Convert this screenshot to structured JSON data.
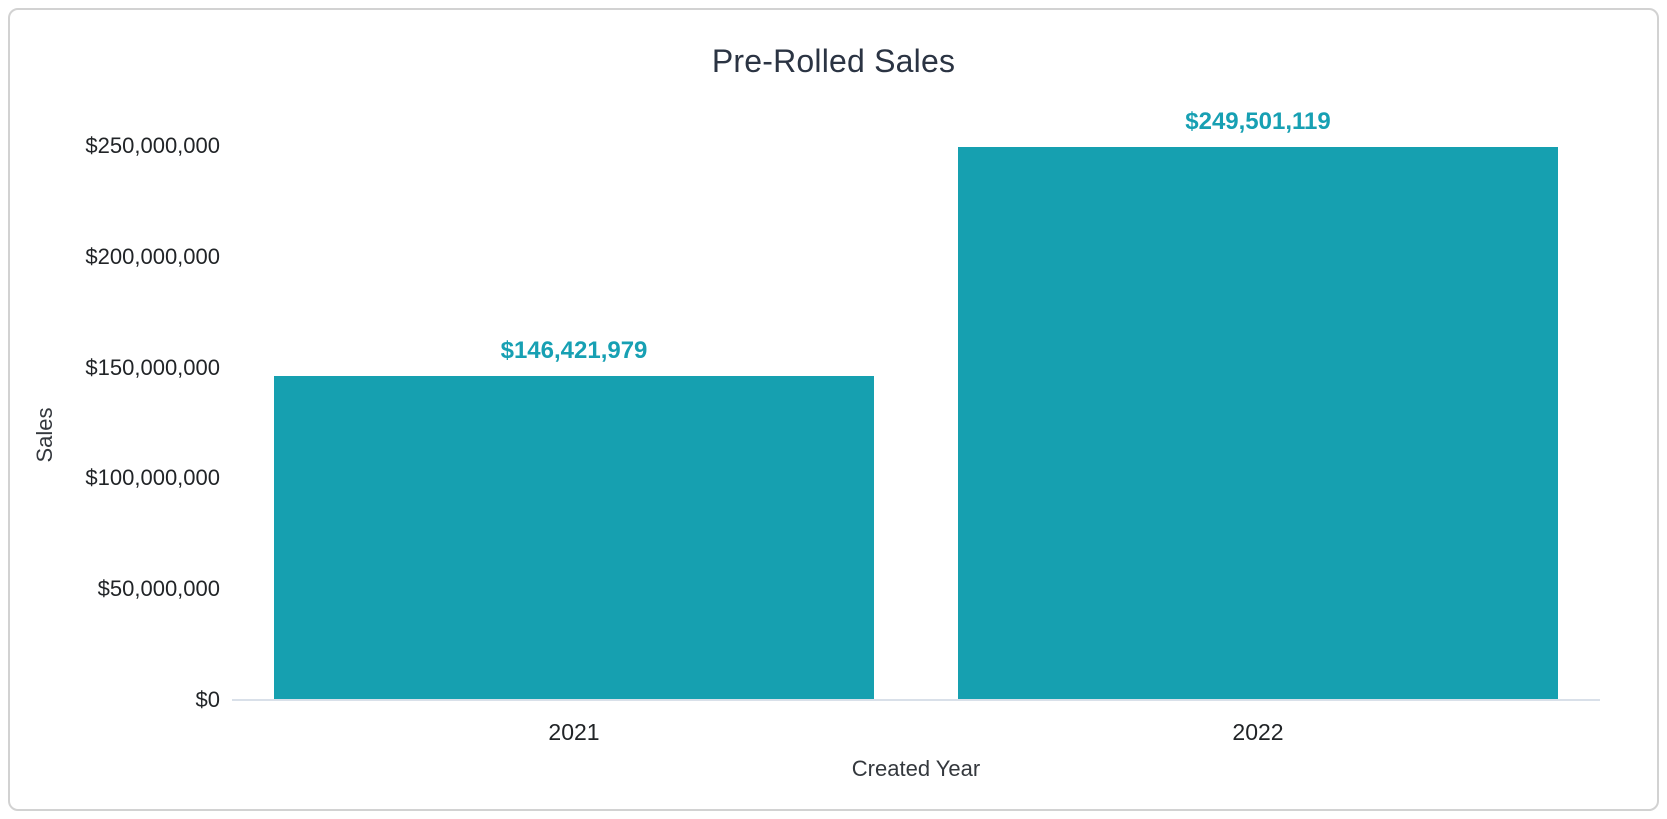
{
  "chart_data": {
    "type": "bar",
    "title": "Pre-Rolled Sales",
    "xlabel": "Created Year",
    "ylabel": "Sales",
    "categories": [
      "2021",
      "2022"
    ],
    "values": [
      146421979,
      249501119
    ],
    "value_labels": [
      "$146,421,979",
      "$249,501,119"
    ],
    "ylim": [
      0,
      250000000
    ],
    "y_ticks": [
      {
        "value": 0,
        "label": "$0"
      },
      {
        "value": 50000000,
        "label": "$50,000,000"
      },
      {
        "value": 100000000,
        "label": "$100,000,000"
      },
      {
        "value": 150000000,
        "label": "$150,000,000"
      },
      {
        "value": 200000000,
        "label": "$200,000,000"
      },
      {
        "value": 250000000,
        "label": "$250,000,000"
      }
    ],
    "grid": false,
    "legend": "none",
    "colors": {
      "bar": "#16A0B0",
      "value_label": "#17A0B3",
      "title": "#2B3443",
      "tick_label": "#212427",
      "axis_title": "#34383D",
      "baseline": "#D9E0E9",
      "card_border": "#D2D2D2",
      "background": "#FFFFFF"
    }
  }
}
